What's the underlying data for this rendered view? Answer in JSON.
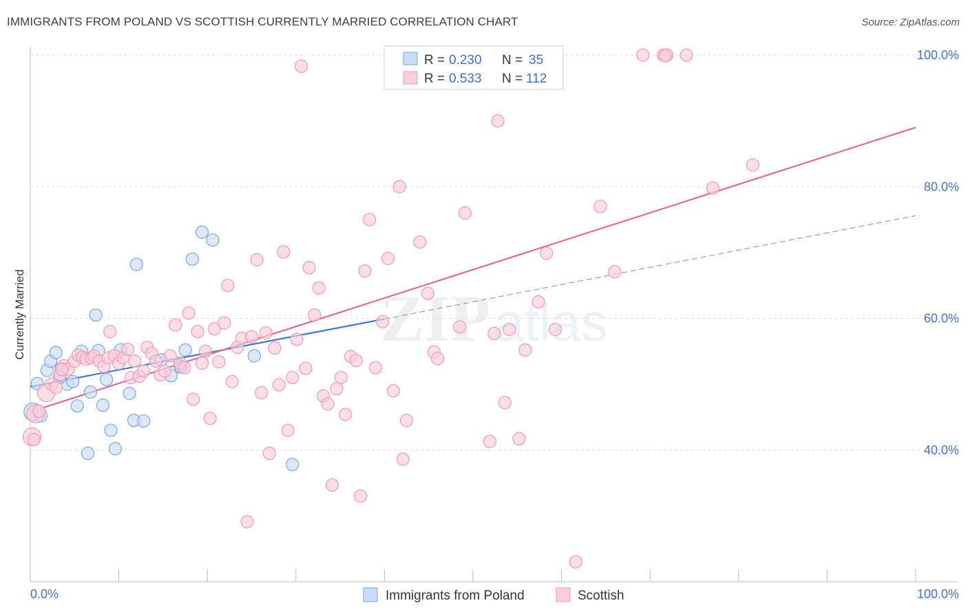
{
  "header": {
    "title": "IMMIGRANTS FROM POLAND VS SCOTTISH CURRENTLY MARRIED CORRELATION CHART",
    "source": "Source: ZipAtlas.com"
  },
  "chart_data": {
    "type": "scatter",
    "ylabel": "Currently Married",
    "xlim": [
      0,
      100
    ],
    "ylim": [
      20,
      100
    ],
    "x_tick_labels": [
      "0.0%",
      "100.0%"
    ],
    "y_ticks": [
      40,
      60,
      80,
      100
    ],
    "y_tick_labels": [
      "40.0%",
      "60.0%",
      "80.0%",
      "100.0%"
    ],
    "grid": true,
    "watermark": "ZIPatlas",
    "legend": {
      "position": "top-center",
      "entries": [
        {
          "r_label": "R =",
          "r_value": "0.230",
          "n_label": "N =",
          "n_value": "35"
        },
        {
          "r_label": "R =",
          "r_value": "0.533",
          "n_label": "N =",
          "n_value": "112"
        }
      ]
    },
    "series": [
      {
        "name": "Immigrants from Poland",
        "color": "#7aa7e3",
        "line_color": "#3a78d4",
        "trend": {
          "x0": 0,
          "y0": 49.6,
          "x1": 40,
          "y1": 59.9,
          "dash_to_x": 100,
          "dash_to_y": 75.6
        },
        "points": [
          [
            0.3,
            45.8
          ],
          [
            1.2,
            45.2
          ],
          [
            0.8,
            50.1
          ],
          [
            1.9,
            52.1
          ],
          [
            2.3,
            53.5
          ],
          [
            2.9,
            54.8
          ],
          [
            3.5,
            52.4
          ],
          [
            4.2,
            50.0
          ],
          [
            4.8,
            50.4
          ],
          [
            5.3,
            46.7
          ],
          [
            5.8,
            55.0
          ],
          [
            6.5,
            39.5
          ],
          [
            6.8,
            48.8
          ],
          [
            7.4,
            60.5
          ],
          [
            7.7,
            55.1
          ],
          [
            8.2,
            46.8
          ],
          [
            8.6,
            50.7
          ],
          [
            9.1,
            43.0
          ],
          [
            9.6,
            40.2
          ],
          [
            10.2,
            55.2
          ],
          [
            11.2,
            48.6
          ],
          [
            11.7,
            44.5
          ],
          [
            12.0,
            68.2
          ],
          [
            12.8,
            44.4
          ],
          [
            14.8,
            53.7
          ],
          [
            15.9,
            51.3
          ],
          [
            16.9,
            52.8
          ],
          [
            17.5,
            55.2
          ],
          [
            18.3,
            69.0
          ],
          [
            19.4,
            73.1
          ],
          [
            20.6,
            71.9
          ],
          [
            25.3,
            54.3
          ],
          [
            29.6,
            37.8
          ],
          [
            17.0,
            52.6
          ],
          [
            3.3,
            51.0
          ]
        ]
      },
      {
        "name": "Scottish",
        "color": "#f09ab6",
        "line_color": "#e0698f",
        "trend": {
          "x0": 0,
          "y0": 45.8,
          "x1": 100,
          "y1": 89.0
        },
        "points": [
          [
            0.2,
            42.0
          ],
          [
            0.6,
            45.5
          ],
          [
            1.0,
            45.9
          ],
          [
            1.8,
            48.7
          ],
          [
            2.4,
            50.0
          ],
          [
            2.9,
            49.5
          ],
          [
            3.4,
            51.5
          ],
          [
            3.8,
            52.8
          ],
          [
            4.3,
            52.3
          ],
          [
            5.0,
            53.5
          ],
          [
            5.4,
            54.4
          ],
          [
            5.9,
            54.1
          ],
          [
            6.3,
            53.8
          ],
          [
            6.9,
            54.0
          ],
          [
            7.2,
            54.3
          ],
          [
            7.8,
            53.5
          ],
          [
            8.3,
            52.7
          ],
          [
            8.8,
            54.0
          ],
          [
            9.0,
            58.0
          ],
          [
            9.5,
            54.3
          ],
          [
            10.0,
            53.2
          ],
          [
            10.5,
            54.0
          ],
          [
            11.0,
            55.3
          ],
          [
            11.4,
            51.0
          ],
          [
            11.8,
            53.5
          ],
          [
            12.3,
            51.2
          ],
          [
            12.8,
            52.0
          ],
          [
            13.2,
            55.6
          ],
          [
            13.7,
            54.7
          ],
          [
            14.2,
            53.5
          ],
          [
            14.7,
            51.4
          ],
          [
            15.2,
            52.0
          ],
          [
            15.8,
            54.3
          ],
          [
            16.4,
            59.0
          ],
          [
            16.9,
            53.2
          ],
          [
            17.4,
            52.5
          ],
          [
            17.9,
            60.8
          ],
          [
            18.4,
            47.7
          ],
          [
            18.9,
            58.0
          ],
          [
            19.4,
            53.2
          ],
          [
            19.8,
            55.0
          ],
          [
            20.3,
            44.8
          ],
          [
            20.8,
            58.4
          ],
          [
            21.3,
            53.4
          ],
          [
            21.9,
            59.3
          ],
          [
            22.3,
            65.0
          ],
          [
            22.8,
            50.4
          ],
          [
            23.4,
            55.6
          ],
          [
            23.9,
            57.0
          ],
          [
            24.5,
            29.1
          ],
          [
            25.0,
            57.2
          ],
          [
            25.6,
            68.9
          ],
          [
            26.1,
            48.7
          ],
          [
            26.6,
            57.8
          ],
          [
            27.0,
            39.5
          ],
          [
            27.6,
            55.5
          ],
          [
            28.1,
            49.9
          ],
          [
            28.6,
            70.1
          ],
          [
            29.1,
            43.0
          ],
          [
            29.6,
            51.0
          ],
          [
            30.1,
            56.8
          ],
          [
            30.6,
            98.3
          ],
          [
            31.1,
            52.4
          ],
          [
            31.5,
            67.7
          ],
          [
            32.1,
            60.5
          ],
          [
            32.6,
            64.6
          ],
          [
            33.1,
            48.2
          ],
          [
            33.6,
            47.0
          ],
          [
            34.1,
            34.7
          ],
          [
            34.6,
            49.3
          ],
          [
            35.1,
            51.0
          ],
          [
            35.6,
            45.4
          ],
          [
            36.2,
            54.2
          ],
          [
            36.8,
            53.6
          ],
          [
            37.3,
            33.0
          ],
          [
            37.8,
            67.2
          ],
          [
            38.3,
            75.0
          ],
          [
            39.0,
            52.5
          ],
          [
            39.8,
            59.5
          ],
          [
            40.4,
            69.1
          ],
          [
            41.0,
            49.0
          ],
          [
            41.7,
            80.0
          ],
          [
            42.1,
            38.6
          ],
          [
            42.5,
            44.5
          ],
          [
            44.0,
            71.6
          ],
          [
            44.9,
            63.8
          ],
          [
            45.6,
            54.9
          ],
          [
            46.0,
            53.9
          ],
          [
            48.5,
            58.7
          ],
          [
            49.1,
            76.0
          ],
          [
            51.9,
            41.3
          ],
          [
            52.4,
            57.7
          ],
          [
            52.8,
            90.0
          ],
          [
            53.6,
            47.2
          ],
          [
            54.1,
            58.3
          ],
          [
            55.2,
            41.7
          ],
          [
            55.9,
            55.2
          ],
          [
            57.4,
            62.5
          ],
          [
            58.3,
            69.9
          ],
          [
            59.3,
            58.3
          ],
          [
            61.6,
            23.0
          ],
          [
            64.4,
            77.0
          ],
          [
            66.0,
            67.1
          ],
          [
            69.2,
            100.0
          ],
          [
            71.5,
            100.0
          ],
          [
            71.9,
            100.0
          ],
          [
            74.1,
            100.0
          ],
          [
            77.1,
            79.8
          ],
          [
            81.6,
            83.3
          ],
          [
            71.7,
            99.9
          ],
          [
            0.4,
            41.6
          ],
          [
            3.6,
            52.2
          ]
        ]
      }
    ]
  }
}
